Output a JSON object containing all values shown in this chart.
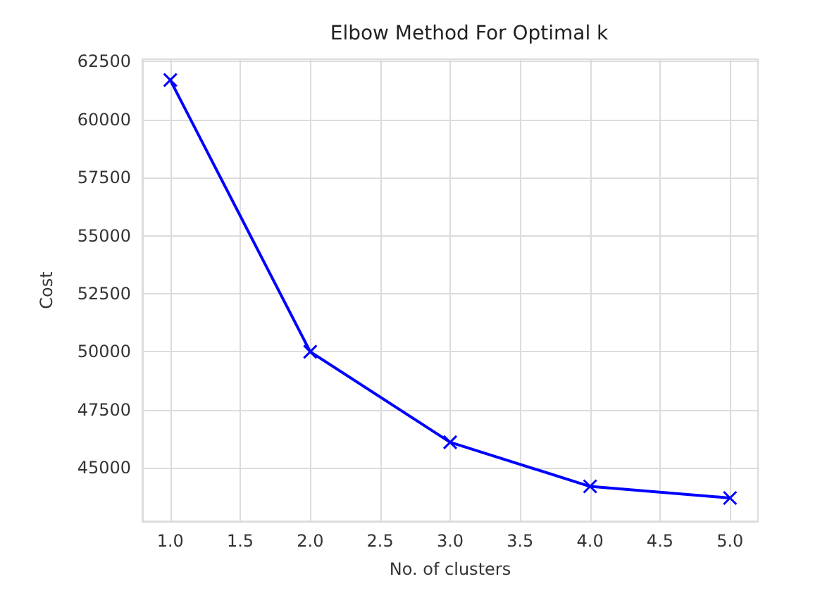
{
  "chart_data": {
    "type": "line",
    "title": "Elbow Method For Optimal k",
    "xlabel": "No. of clusters",
    "ylabel": "Cost",
    "x": [
      1,
      2,
      3,
      4,
      5
    ],
    "series": [
      {
        "color": "#0000ff",
        "values": [
          61700,
          50000,
          46100,
          44200,
          43700
        ]
      }
    ],
    "xlim": [
      0.8,
      5.2
    ],
    "xticks": [
      {
        "value": 1,
        "label": "1.0"
      },
      1.5,
      {
        "value": 2,
        "label": "2.0"
      },
      2.5,
      {
        "value": 3,
        "label": "3.0"
      },
      3.5,
      {
        "value": 4,
        "label": "4.0"
      },
      4.5,
      {
        "value": 5,
        "label": "5.0"
      }
    ],
    "ylim": [
      42700,
      62600
    ],
    "yticks": [
      45000,
      47500,
      50000,
      52500,
      55000,
      57500,
      60000,
      62500
    ],
    "grid": true,
    "marker": "cross",
    "line_style": "solid"
  }
}
